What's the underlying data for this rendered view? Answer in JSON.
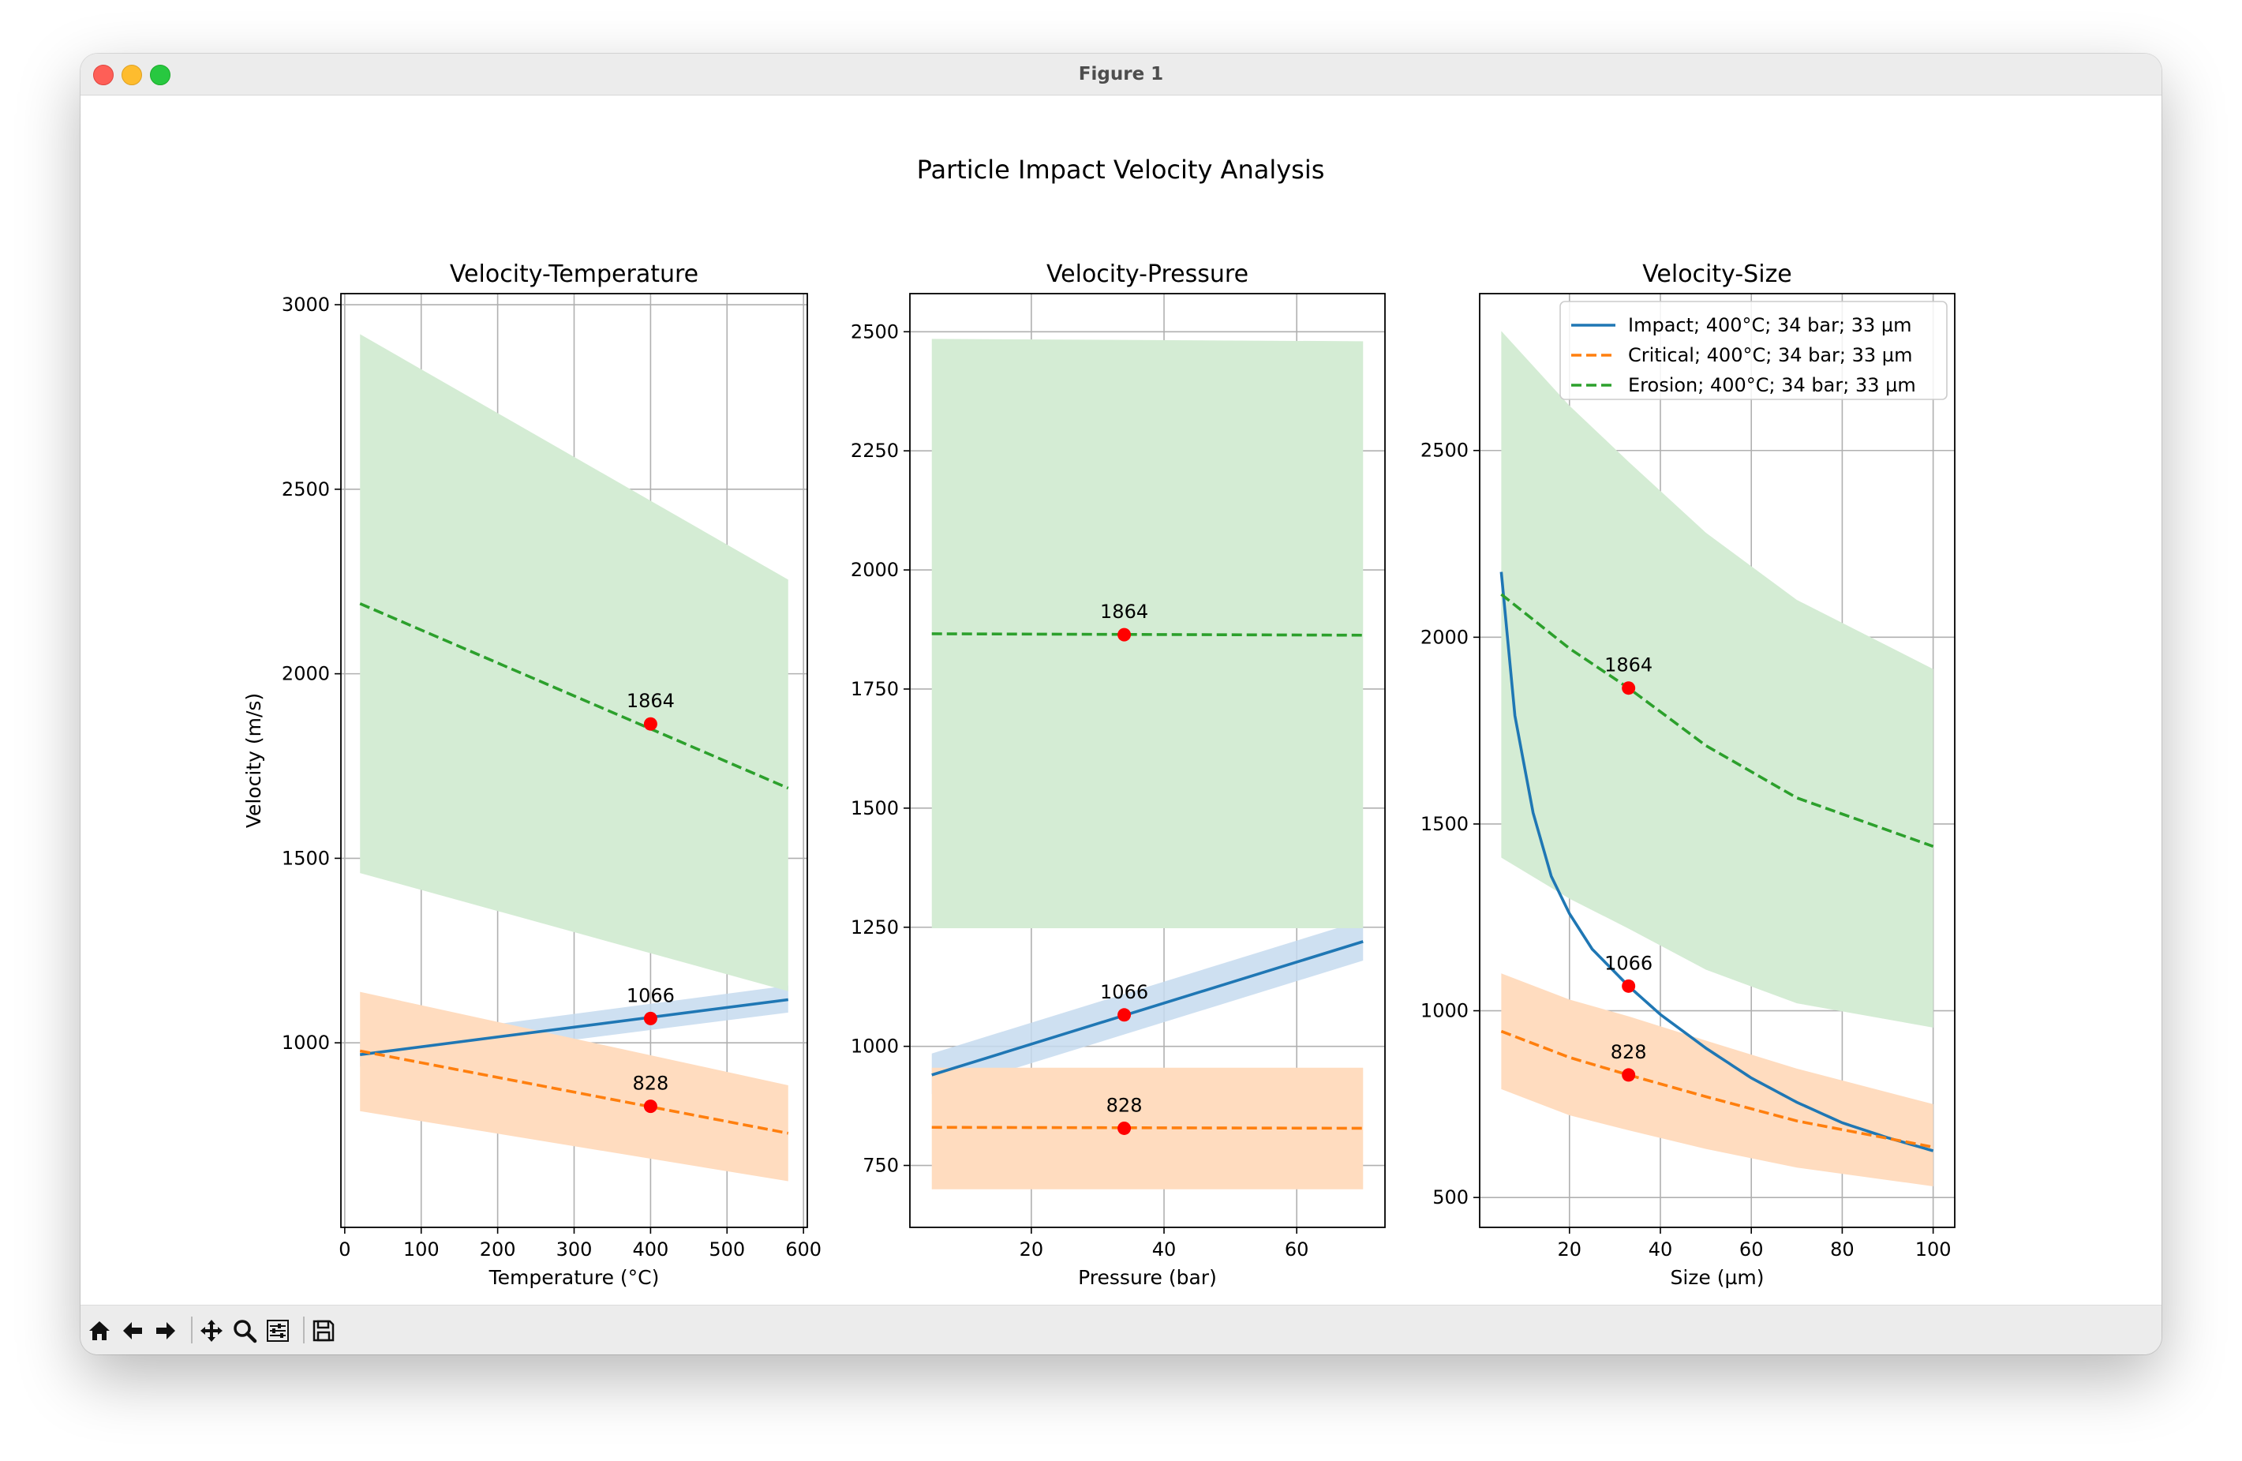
{
  "window": {
    "title": "Figure 1"
  },
  "figure": {
    "suptitle": "Particle Impact Velocity Analysis"
  },
  "toolbar": {
    "buttons": [
      "home-icon",
      "back-arrow-icon",
      "forward-arrow-icon",
      "pan-icon",
      "zoom-icon",
      "configure-subplots-icon",
      "save-icon"
    ]
  },
  "colors": {
    "impact": "#1f77b4",
    "critical": "#ff7f0e",
    "erosion": "#2ca02c",
    "impact_band": "#c6dbef",
    "critical_band": "#ffdcbf",
    "erosion_band": "#d4ecd4",
    "marker": "#ff0000",
    "grid": "#b0b0b0"
  },
  "chart_data": [
    {
      "type": "line",
      "title": "Velocity-Temperature",
      "xlabel": "Temperature (°C)",
      "ylabel": "Velocity (m/s)",
      "xlim": [
        -5,
        605
      ],
      "ylim": [
        500,
        3030
      ],
      "xticks": [
        0,
        100,
        200,
        300,
        400,
        500,
        600
      ],
      "yticks": [
        1000,
        1500,
        2000,
        2500,
        3000
      ],
      "grid": true,
      "series": [
        {
          "key": "impact",
          "style": "solid",
          "x": [
            20,
            580
          ],
          "y": [
            968,
            1117
          ],
          "band_lower": [
            935,
            1082
          ],
          "band_upper": [
            1002,
            1155
          ]
        },
        {
          "key": "critical",
          "style": "dashed",
          "x": [
            20,
            580
          ],
          "y": [
            978,
            755
          ],
          "band_lower": [
            815,
            625
          ],
          "band_upper": [
            1138,
            885
          ]
        },
        {
          "key": "erosion",
          "style": "dashed",
          "x": [
            20,
            580
          ],
          "y": [
            2190,
            1690
          ],
          "band_lower": [
            1460,
            1140
          ],
          "band_upper": [
            2920,
            2255
          ]
        }
      ],
      "markers": [
        {
          "x": 400,
          "y": 1864,
          "label": "1864"
        },
        {
          "x": 400,
          "y": 1066,
          "label": "1066"
        },
        {
          "x": 400,
          "y": 828,
          "label": "828"
        }
      ]
    },
    {
      "type": "line",
      "title": "Velocity-Pressure",
      "xlabel": "Pressure (bar)",
      "ylabel": "",
      "xlim": [
        1.7,
        73.3
      ],
      "ylim": [
        620,
        2580
      ],
      "xticks": [
        20,
        40,
        60
      ],
      "yticks": [
        750,
        1000,
        1250,
        1500,
        1750,
        2000,
        2250,
        2500
      ],
      "grid": true,
      "series": [
        {
          "key": "impact",
          "style": "solid",
          "x": [
            5,
            70
          ],
          "y": [
            940,
            1220
          ],
          "band_lower": [
            900,
            1180
          ],
          "band_upper": [
            985,
            1265
          ]
        },
        {
          "key": "critical",
          "style": "dashed",
          "x": [
            5,
            70
          ],
          "y": [
            830,
            828
          ],
          "band_lower": [
            700,
            700
          ],
          "band_upper": [
            955,
            955
          ]
        },
        {
          "key": "erosion",
          "style": "dashed",
          "x": [
            5,
            70
          ],
          "y": [
            1866,
            1863
          ],
          "band_lower": [
            1248,
            1248
          ],
          "band_upper": [
            2485,
            2480
          ]
        }
      ],
      "markers": [
        {
          "x": 34,
          "y": 1864,
          "label": "1864"
        },
        {
          "x": 34,
          "y": 1066,
          "label": "1066"
        },
        {
          "x": 34,
          "y": 828,
          "label": "828"
        }
      ]
    },
    {
      "type": "line",
      "title": "Velocity-Size",
      "xlabel": "Size (µm)",
      "ylabel": "",
      "xlim": [
        0.25,
        104.75
      ],
      "ylim": [
        420,
        2920
      ],
      "xticks": [
        20,
        40,
        60,
        80,
        100
      ],
      "yticks": [
        500,
        1000,
        1500,
        2000,
        2500
      ],
      "grid": true,
      "legend": {
        "placement": "upper-right",
        "entries": [
          {
            "key": "impact",
            "style": "solid",
            "label": "Impact; 400°C; 34 bar; 33 µm"
          },
          {
            "key": "critical",
            "style": "dashed",
            "label": "Critical; 400°C; 34 bar; 33 µm"
          },
          {
            "key": "erosion",
            "style": "dashed",
            "label": "Erosion; 400°C; 34 bar; 33 µm"
          }
        ]
      },
      "series": [
        {
          "key": "impact",
          "style": "solid",
          "x": [
            5,
            8,
            12,
            16,
            20,
            25,
            33,
            40,
            50,
            60,
            70,
            80,
            90,
            100
          ],
          "y": [
            2175,
            1790,
            1530,
            1360,
            1260,
            1165,
            1066,
            990,
            900,
            820,
            755,
            700,
            660,
            625
          ]
        },
        {
          "key": "critical",
          "style": "dashed",
          "x": [
            5,
            20,
            33,
            50,
            70,
            100
          ],
          "y": [
            945,
            875,
            828,
            770,
            705,
            635
          ],
          "band_lower": [
            790,
            720,
            680,
            630,
            580,
            530
          ],
          "band_upper": [
            1100,
            1030,
            985,
            920,
            845,
            750
          ]
        },
        {
          "key": "erosion",
          "style": "dashed",
          "x": [
            5,
            20,
            33,
            50,
            70,
            100
          ],
          "y": [
            2115,
            1970,
            1864,
            1710,
            1570,
            1440
          ],
          "band_lower": [
            1410,
            1300,
            1220,
            1110,
            1020,
            955
          ],
          "band_upper": [
            2820,
            2620,
            2470,
            2280,
            2100,
            1915
          ]
        }
      ],
      "markers": [
        {
          "x": 33,
          "y": 1864,
          "label": "1864"
        },
        {
          "x": 33,
          "y": 1066,
          "label": "1066"
        },
        {
          "x": 33,
          "y": 828,
          "label": "828"
        }
      ]
    }
  ]
}
